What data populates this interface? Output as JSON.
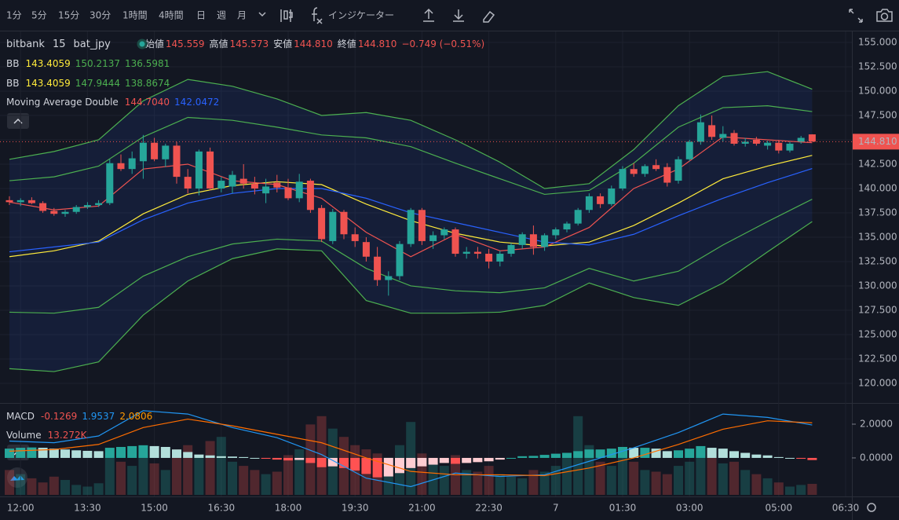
{
  "toolbar": {
    "intervals": [
      "1分",
      "5分",
      "15分",
      "30分",
      "1時間",
      "4時間",
      "日",
      "週",
      "月"
    ],
    "active_interval": 2,
    "indicators": "インジケーター"
  },
  "legend": {
    "symbol": [
      "bitbank",
      "15",
      "bat_jpy"
    ],
    "ohlc": [
      [
        "始値",
        "145.559"
      ],
      [
        "高値",
        "145.573"
      ],
      [
        "安値",
        "144.810"
      ],
      [
        "終値",
        "144.810"
      ]
    ],
    "change": "−0.749 (−0.51%)",
    "bb1": [
      "BB",
      "143.4059",
      "150.2137",
      "136.5981"
    ],
    "bb2": [
      "BB",
      "143.4059",
      "147.9444",
      "138.8674"
    ],
    "ma": [
      "Moving Average Double",
      "144.7040",
      "142.0472"
    ],
    "macd": [
      "MACD",
      "-0.1269",
      "1.9537",
      "2.0806"
    ],
    "volume": [
      "Volume",
      "13.272K"
    ]
  },
  "chart": {
    "type": "candlestick",
    "up_color": "#26a69a",
    "down_color": "#ef5350",
    "ylim": [
      118.06,
      156.13
    ],
    "yticks": [
      {
        "value": 155,
        "label": "155.000"
      },
      {
        "value": 152.5,
        "label": "152.500"
      },
      {
        "value": 150,
        "label": "150.000"
      },
      {
        "value": 147.5,
        "label": "147.500"
      },
      {
        "value": 145,
        "label": "145.000"
      },
      {
        "value": 142.5,
        "label": "142.500"
      },
      {
        "value": 140,
        "label": "140.000"
      },
      {
        "value": 137.5,
        "label": "137.500"
      },
      {
        "value": 135,
        "label": "135.000"
      },
      {
        "value": 132.5,
        "label": "132.500"
      },
      {
        "value": 130,
        "label": "130.000"
      },
      {
        "value": 127.5,
        "label": "127.500"
      },
      {
        "value": 125,
        "label": "125.000"
      },
      {
        "value": 122.5,
        "label": "122.500"
      },
      {
        "value": 120,
        "label": "120.000"
      }
    ],
    "current_price": {
      "value": 144.81,
      "label": "144.810"
    },
    "time_axis": [
      null,
      "12:00",
      null,
      null,
      null,
      null,
      null,
      "13:30",
      null,
      null,
      null,
      null,
      null,
      "15:00",
      null,
      null,
      null,
      null,
      null,
      "16:30",
      null,
      null,
      null,
      null,
      null,
      "18:00",
      null,
      null,
      null,
      null,
      null,
      "19:30",
      null,
      null,
      null,
      null,
      null,
      "21:00",
      null,
      null,
      null,
      null,
      null,
      "22:30",
      null,
      null,
      null,
      null,
      null,
      "7",
      null,
      null,
      null,
      null,
      null,
      "01:30",
      null,
      null,
      null,
      null,
      null,
      "03:00",
      null,
      null,
      null,
      null,
      null,
      null,
      null,
      "05:00",
      null,
      null,
      null,
      null,
      null,
      "06:30"
    ],
    "candles": [
      [
        138.8,
        139.2,
        138.3,
        138.6
      ],
      [
        138.6,
        139.0,
        138.2,
        138.8
      ],
      [
        138.8,
        139.1,
        138.4,
        138.5
      ],
      [
        138.5,
        138.7,
        137.5,
        137.7
      ],
      [
        137.7,
        138.0,
        137.2,
        137.4
      ],
      [
        137.4,
        137.8,
        137.1,
        137.6
      ],
      [
        137.6,
        138.3,
        137.4,
        138.1
      ],
      [
        138.1,
        138.6,
        137.9,
        138.3
      ],
      [
        138.3,
        138.8,
        138.1,
        138.5
      ],
      [
        138.5,
        143.0,
        138.3,
        142.6
      ],
      [
        142.6,
        143.5,
        141.8,
        142.0
      ],
      [
        142.0,
        143.8,
        141.5,
        143.1
      ],
      [
        142.8,
        145.5,
        141.0,
        144.7
      ],
      [
        144.7,
        145.2,
        142.8,
        143.0
      ],
      [
        143.0,
        144.6,
        142.2,
        144.4
      ],
      [
        144.4,
        144.8,
        140.5,
        141.2
      ],
      [
        141.2,
        142.0,
        139.5,
        140.0
      ],
      [
        140.0,
        144.0,
        139.3,
        143.8
      ],
      [
        143.8,
        144.2,
        139.8,
        140.0
      ],
      [
        140.0,
        141.2,
        139.6,
        140.8
      ],
      [
        140.2,
        141.8,
        139.5,
        141.4
      ],
      [
        141.0,
        142.5,
        140.0,
        140.5
      ],
      [
        140.5,
        141.2,
        139.4,
        140.0
      ],
      [
        139.5,
        141.0,
        138.5,
        140.2
      ],
      [
        140.6,
        141.4,
        139.6,
        140.1
      ],
      [
        140.1,
        141.0,
        138.8,
        139.0
      ],
      [
        139.0,
        141.5,
        138.6,
        140.7
      ],
      [
        140.8,
        141.0,
        137.5,
        137.8
      ],
      [
        138.0,
        138.3,
        134.5,
        134.8
      ],
      [
        134.6,
        137.9,
        134.3,
        137.6
      ],
      [
        137.6,
        137.8,
        134.8,
        135.3
      ],
      [
        135.3,
        136.0,
        134.0,
        134.6
      ],
      [
        134.5,
        135.0,
        132.5,
        133.0
      ],
      [
        133.0,
        134.0,
        130.0,
        130.6
      ],
      [
        130.6,
        131.5,
        129.0,
        131.0
      ],
      [
        131.0,
        134.6,
        130.6,
        134.3
      ],
      [
        134.3,
        138.0,
        134.0,
        137.8
      ],
      [
        137.8,
        138.0,
        134.2,
        134.6
      ],
      [
        134.6,
        135.6,
        133.8,
        135.2
      ],
      [
        135.2,
        136.0,
        134.8,
        135.8
      ],
      [
        135.8,
        136.0,
        133.0,
        133.3
      ],
      [
        133.3,
        134.0,
        132.8,
        133.5
      ],
      [
        133.5,
        134.0,
        132.8,
        133.3
      ],
      [
        133.3,
        133.8,
        131.8,
        132.5
      ],
      [
        132.5,
        133.6,
        132.0,
        133.3
      ],
      [
        133.3,
        134.4,
        133.0,
        134.2
      ],
      [
        134.2,
        135.5,
        133.8,
        135.3
      ],
      [
        135.3,
        136.2,
        133.2,
        134.0
      ],
      [
        134.0,
        135.4,
        133.6,
        135.2
      ],
      [
        135.2,
        136.0,
        134.8,
        135.8
      ],
      [
        135.8,
        136.6,
        135.5,
        136.4
      ],
      [
        136.4,
        138.0,
        136.2,
        137.8
      ],
      [
        137.8,
        139.5,
        137.5,
        139.2
      ],
      [
        139.2,
        139.5,
        138.0,
        138.4
      ],
      [
        138.4,
        140.3,
        138.2,
        140.0
      ],
      [
        140.0,
        142.3,
        139.8,
        142.0
      ],
      [
        142.0,
        142.6,
        141.2,
        141.5
      ],
      [
        141.5,
        142.5,
        141.2,
        142.3
      ],
      [
        142.4,
        143.0,
        141.8,
        142.0
      ],
      [
        142.2,
        142.6,
        140.2,
        140.6
      ],
      [
        140.8,
        143.3,
        140.5,
        143.0
      ],
      [
        143.0,
        145.0,
        142.8,
        144.8
      ],
      [
        144.8,
        147.6,
        144.5,
        146.8
      ],
      [
        146.5,
        147.5,
        145.0,
        145.3
      ],
      [
        145.2,
        146.4,
        144.8,
        145.6
      ],
      [
        145.7,
        146.0,
        144.4,
        144.6
      ],
      [
        144.6,
        145.2,
        144.3,
        144.8
      ],
      [
        145.0,
        145.3,
        144.4,
        144.6
      ],
      [
        144.4,
        144.9,
        144.0,
        144.7
      ],
      [
        144.7,
        145.0,
        143.6,
        143.9
      ],
      [
        143.9,
        144.8,
        143.7,
        144.6
      ],
      [
        144.8,
        145.4,
        144.6,
        145.2
      ],
      [
        145.559,
        145.573,
        144.81,
        144.81
      ]
    ],
    "lines": {
      "bb_outer_upper": {
        "color": "#4caf50",
        "values": [
          143.0,
          143.8,
          145.0,
          149.0,
          151.2,
          150.5,
          149.2,
          147.5,
          147.8,
          147.0,
          145.0,
          142.7,
          140.0,
          140.5,
          144.0,
          148.5,
          151.5,
          152.0,
          150.2
        ]
      },
      "bb_inner_upper": {
        "color": "#4caf50",
        "values": [
          140.8,
          141.2,
          142.3,
          145.3,
          147.3,
          147.0,
          146.3,
          145.5,
          145.2,
          144.3,
          142.6,
          141.0,
          139.4,
          139.8,
          142.6,
          146.3,
          148.3,
          148.5,
          147.9
        ]
      },
      "bb_middle": {
        "color": "#ffeb3b",
        "values": [
          133.0,
          133.6,
          134.6,
          137.4,
          139.4,
          140.3,
          140.7,
          140.4,
          138.4,
          136.7,
          135.4,
          134.5,
          134.1,
          134.5,
          136.2,
          138.5,
          141.0,
          142.3,
          143.4
        ]
      },
      "bb_inner_lower": {
        "color": "#4caf50",
        "values": [
          127.3,
          127.2,
          127.8,
          131.0,
          133.0,
          134.3,
          134.8,
          134.6,
          131.8,
          130.0,
          129.5,
          129.3,
          129.8,
          131.8,
          130.5,
          131.5,
          134.2,
          136.6,
          138.9
        ]
      },
      "bb_outer_lower": {
        "color": "#4caf50",
        "values": [
          121.5,
          121.2,
          122.2,
          127.0,
          130.5,
          132.8,
          133.8,
          133.6,
          128.5,
          127.2,
          127.2,
          127.3,
          128.0,
          130.3,
          128.8,
          128.0,
          130.3,
          133.5,
          136.6
        ]
      },
      "ma_fast": {
        "color": "#ef5350",
        "values": [
          138.6,
          137.8,
          138.2,
          142.0,
          142.5,
          140.8,
          140.4,
          139.0,
          135.5,
          133.0,
          135.3,
          133.6,
          134.0,
          136.0,
          140.0,
          142.0,
          145.3,
          145.0,
          144.7
        ]
      },
      "ma_slow": {
        "color": "#2962ff",
        "values": [
          133.5,
          134.0,
          134.5,
          136.8,
          138.5,
          139.5,
          140.0,
          140.0,
          139.0,
          137.5,
          136.5,
          135.5,
          134.5,
          134.2,
          135.3,
          137.2,
          139.0,
          140.6,
          142.05
        ]
      }
    },
    "macd_ylim": [
      -2.19,
      3.21
    ],
    "macd_yticks": [
      {
        "value": 2,
        "label": "2.0000"
      },
      {
        "value": 0,
        "label": "0.0000"
      }
    ],
    "macd_histogram": [
      0.55,
      0.6,
      0.62,
      0.6,
      0.55,
      0.5,
      0.45,
      0.42,
      0.4,
      0.6,
      0.65,
      0.7,
      0.75,
      0.7,
      0.65,
      0.5,
      0.35,
      0.2,
      0.15,
      0.1,
      0.08,
      0.05,
      0.0,
      -0.05,
      -0.1,
      -0.15,
      -0.12,
      -0.3,
      -0.55,
      -0.5,
      -0.6,
      -0.75,
      -0.95,
      -1.15,
      -1.1,
      -0.9,
      -0.6,
      -0.5,
      -0.4,
      -0.3,
      -0.35,
      -0.3,
      -0.25,
      -0.2,
      -0.1,
      0.0,
      0.1,
      0.12,
      0.18,
      0.25,
      0.3,
      0.4,
      0.5,
      0.5,
      0.55,
      0.65,
      0.6,
      0.6,
      0.55,
      0.4,
      0.45,
      0.55,
      0.7,
      0.6,
      0.55,
      0.4,
      0.3,
      0.2,
      0.15,
      0.05,
      0.0,
      -0.05,
      -0.1269
    ],
    "macd_line": {
      "color": "#2196f3",
      "values": [
        1.0,
        0.9,
        1.3,
        2.8,
        2.6,
        1.8,
        1.2,
        0.2,
        -1.2,
        -1.7,
        -0.9,
        -1.1,
        -1.0,
        -0.2,
        0.6,
        1.5,
        2.6,
        2.4,
        1.95
      ]
    },
    "signal_line": {
      "color": "#ff6d00",
      "values": [
        0.4,
        0.5,
        0.8,
        1.8,
        2.3,
        1.9,
        1.4,
        0.9,
        0.0,
        -0.8,
        -1.0,
        -1.0,
        -1.05,
        -0.6,
        0.0,
        0.8,
        1.7,
        2.2,
        2.08
      ]
    },
    "volume_ylim": [
      0,
      110
    ],
    "volume": [
      30,
      25,
      20,
      15,
      22,
      18,
      12,
      10,
      14,
      45,
      40,
      35,
      50,
      38,
      30,
      55,
      60,
      45,
      65,
      70,
      40,
      35,
      30,
      25,
      28,
      48,
      55,
      85,
      95,
      80,
      70,
      60,
      55,
      50,
      45,
      60,
      88,
      50,
      40,
      35,
      48,
      30,
      28,
      35,
      25,
      22,
      20,
      30,
      28,
      35,
      45,
      95,
      60,
      40,
      35,
      45,
      40,
      30,
      28,
      25,
      35,
      40,
      55,
      45,
      38,
      40,
      30,
      25,
      20,
      15,
      10,
      12,
      13.272
    ]
  }
}
